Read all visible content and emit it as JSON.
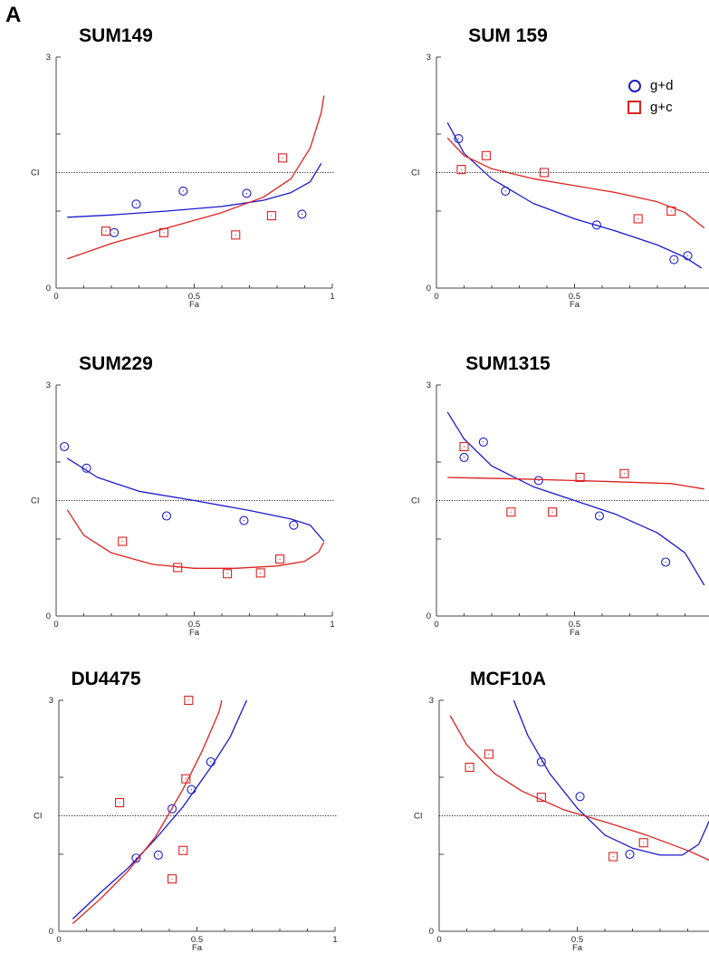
{
  "panel_letter": "A",
  "legend": [
    {
      "label": "g+d",
      "marker": "circle",
      "color": "#1a1acc"
    },
    {
      "label": "g+c",
      "marker": "square",
      "color": "#dd2222"
    }
  ],
  "chart_data": [
    {
      "type": "scatter",
      "title": "SUM149",
      "xlabel": "Fa",
      "ylabel": "CI",
      "xlim": [
        0,
        1
      ],
      "ylim": [
        0,
        3
      ],
      "xticks": [
        "0",
        "0.5",
        "1"
      ],
      "yticks": [
        "0",
        "3"
      ],
      "reference_line_y": 1.5,
      "series": [
        {
          "name": "g+d",
          "marker": "circle",
          "color": "#1a1acc",
          "points": [
            [
              0.21,
              0.72
            ],
            [
              0.29,
              1.09
            ],
            [
              0.46,
              1.26
            ],
            [
              0.69,
              1.23
            ],
            [
              0.89,
              0.96
            ]
          ],
          "fit": [
            [
              0.04,
              0.92
            ],
            [
              0.2,
              0.95
            ],
            [
              0.4,
              1.0
            ],
            [
              0.6,
              1.06
            ],
            [
              0.75,
              1.14
            ],
            [
              0.85,
              1.24
            ],
            [
              0.92,
              1.38
            ],
            [
              0.96,
              1.62
            ]
          ]
        },
        {
          "name": "g+c",
          "marker": "square",
          "color": "#dd2222",
          "points": [
            [
              0.18,
              0.74
            ],
            [
              0.39,
              0.72
            ],
            [
              0.65,
              0.69
            ],
            [
              0.78,
              0.94
            ],
            [
              0.82,
              1.69
            ]
          ],
          "fit": [
            [
              0.04,
              0.38
            ],
            [
              0.2,
              0.58
            ],
            [
              0.4,
              0.78
            ],
            [
              0.6,
              0.98
            ],
            [
              0.75,
              1.18
            ],
            [
              0.85,
              1.42
            ],
            [
              0.92,
              1.82
            ],
            [
              0.96,
              2.28
            ],
            [
              0.97,
              2.5
            ]
          ]
        }
      ]
    },
    {
      "type": "scatter",
      "title": "SUM 159",
      "xlabel": "Fa",
      "ylabel": "CI",
      "xlim": [
        0,
        1
      ],
      "ylim": [
        0,
        3
      ],
      "xticks": [
        "0",
        "0.5",
        "1"
      ],
      "yticks": [
        "0",
        "3"
      ],
      "reference_line_y": 1.5,
      "series": [
        {
          "name": "g+d",
          "marker": "circle",
          "color": "#1a1acc",
          "points": [
            [
              0.08,
              1.94
            ],
            [
              0.25,
              1.26
            ],
            [
              0.58,
              0.82
            ],
            [
              0.86,
              0.37
            ],
            [
              0.91,
              0.42
            ]
          ],
          "fit": [
            [
              0.04,
              2.15
            ],
            [
              0.1,
              1.75
            ],
            [
              0.2,
              1.42
            ],
            [
              0.35,
              1.1
            ],
            [
              0.5,
              0.9
            ],
            [
              0.65,
              0.74
            ],
            [
              0.8,
              0.56
            ],
            [
              0.9,
              0.4
            ],
            [
              0.96,
              0.26
            ]
          ]
        },
        {
          "name": "g+c",
          "marker": "square",
          "color": "#dd2222",
          "points": [
            [
              0.09,
              1.54
            ],
            [
              0.18,
              1.72
            ],
            [
              0.39,
              1.5
            ],
            [
              0.73,
              0.9
            ],
            [
              0.85,
              1.0
            ]
          ],
          "fit": [
            [
              0.04,
              1.95
            ],
            [
              0.1,
              1.72
            ],
            [
              0.2,
              1.55
            ],
            [
              0.35,
              1.42
            ],
            [
              0.5,
              1.33
            ],
            [
              0.65,
              1.24
            ],
            [
              0.8,
              1.12
            ],
            [
              0.9,
              0.98
            ],
            [
              0.97,
              0.78
            ]
          ]
        }
      ]
    },
    {
      "type": "scatter",
      "title": "SUM229",
      "xlabel": "Fa",
      "ylabel": "CI",
      "xlim": [
        0,
        1
      ],
      "ylim": [
        0,
        3
      ],
      "xticks": [
        "0",
        "0.5",
        "1"
      ],
      "yticks": [
        "0",
        "3"
      ],
      "reference_line_y": 1.5,
      "series": [
        {
          "name": "g+d",
          "marker": "circle",
          "color": "#1a1acc",
          "points": [
            [
              0.03,
              2.2
            ],
            [
              0.11,
              1.92
            ],
            [
              0.4,
              1.3
            ],
            [
              0.68,
              1.24
            ],
            [
              0.86,
              1.18
            ]
          ],
          "fit": [
            [
              0.04,
              2.05
            ],
            [
              0.15,
              1.8
            ],
            [
              0.3,
              1.62
            ],
            [
              0.5,
              1.5
            ],
            [
              0.7,
              1.37
            ],
            [
              0.85,
              1.26
            ],
            [
              0.92,
              1.18
            ],
            [
              0.97,
              0.97
            ]
          ]
        },
        {
          "name": "g+c",
          "marker": "square",
          "color": "#dd2222",
          "points": [
            [
              0.24,
              0.97
            ],
            [
              0.44,
              0.63
            ],
            [
              0.62,
              0.55
            ],
            [
              0.74,
              0.56
            ],
            [
              0.81,
              0.74
            ]
          ],
          "fit": [
            [
              0.04,
              1.38
            ],
            [
              0.1,
              1.05
            ],
            [
              0.2,
              0.82
            ],
            [
              0.35,
              0.67
            ],
            [
              0.5,
              0.62
            ],
            [
              0.65,
              0.62
            ],
            [
              0.8,
              0.65
            ],
            [
              0.9,
              0.71
            ],
            [
              0.95,
              0.83
            ],
            [
              0.97,
              0.96
            ]
          ]
        }
      ]
    },
    {
      "type": "scatter",
      "title": "SUM1315",
      "xlabel": "Fa",
      "ylabel": "CI",
      "xlim": [
        0,
        1
      ],
      "ylim": [
        0,
        3
      ],
      "xticks": [
        "0",
        "0.5",
        "1"
      ],
      "yticks": [
        "0",
        "3"
      ],
      "reference_line_y": 1.5,
      "series": [
        {
          "name": "g+d",
          "marker": "circle",
          "color": "#1a1acc",
          "points": [
            [
              0.1,
              2.06
            ],
            [
              0.17,
              2.26
            ],
            [
              0.37,
              1.76
            ],
            [
              0.59,
              1.3
            ],
            [
              0.83,
              0.7
            ]
          ],
          "fit": [
            [
              0.04,
              2.65
            ],
            [
              0.1,
              2.3
            ],
            [
              0.2,
              1.95
            ],
            [
              0.35,
              1.68
            ],
            [
              0.5,
              1.5
            ],
            [
              0.65,
              1.32
            ],
            [
              0.8,
              1.08
            ],
            [
              0.9,
              0.82
            ],
            [
              0.97,
              0.4
            ]
          ]
        },
        {
          "name": "g+c",
          "marker": "square",
          "color": "#dd2222",
          "points": [
            [
              0.1,
              2.2
            ],
            [
              0.27,
              1.35
            ],
            [
              0.42,
              1.35
            ],
            [
              0.52,
              1.8
            ],
            [
              0.68,
              1.85
            ]
          ],
          "fit": [
            [
              0.04,
              1.8
            ],
            [
              0.3,
              1.78
            ],
            [
              0.6,
              1.75
            ],
            [
              0.85,
              1.72
            ],
            [
              0.97,
              1.65
            ]
          ]
        }
      ]
    },
    {
      "type": "scatter",
      "title": "DU4475",
      "xlabel": "Fa",
      "ylabel": "CI",
      "xlim": [
        0,
        1
      ],
      "ylim": [
        0,
        3
      ],
      "xticks": [
        "0",
        "0.5",
        "1"
      ],
      "yticks": [
        "0",
        "3"
      ],
      "reference_line_y": 1.5,
      "series": [
        {
          "name": "g+d",
          "marker": "circle",
          "color": "#1a1acc",
          "points": [
            [
              0.28,
              0.95
            ],
            [
              0.36,
              0.99
            ],
            [
              0.41,
              1.59
            ],
            [
              0.48,
              1.84
            ],
            [
              0.55,
              2.2
            ]
          ],
          "fit": [
            [
              0.05,
              0.16
            ],
            [
              0.15,
              0.5
            ],
            [
              0.25,
              0.82
            ],
            [
              0.35,
              1.2
            ],
            [
              0.45,
              1.62
            ],
            [
              0.55,
              2.13
            ],
            [
              0.62,
              2.52
            ],
            [
              0.68,
              3.0
            ]
          ]
        },
        {
          "name": "g+c",
          "marker": "square",
          "color": "#dd2222",
          "points": [
            [
              0.22,
              1.67
            ],
            [
              0.41,
              0.68
            ],
            [
              0.45,
              1.05
            ],
            [
              0.46,
              1.98
            ],
            [
              0.47,
              3.0
            ]
          ],
          "fit": [
            [
              0.05,
              0.1
            ],
            [
              0.15,
              0.42
            ],
            [
              0.25,
              0.78
            ],
            [
              0.35,
              1.23
            ],
            [
              0.45,
              1.85
            ],
            [
              0.52,
              2.35
            ],
            [
              0.58,
              2.85
            ],
            [
              0.59,
              3.0
            ]
          ]
        }
      ]
    },
    {
      "type": "scatter",
      "title": "MCF10A",
      "xlabel": "Fa",
      "ylabel": "CI",
      "xlim": [
        0,
        1
      ],
      "ylim": [
        0,
        3
      ],
      "xticks": [
        "0",
        "0.5",
        "1"
      ],
      "yticks": [
        "0",
        "3"
      ],
      "reference_line_y": 1.5,
      "series": [
        {
          "name": "g+d",
          "marker": "circle",
          "color": "#1a1acc",
          "points": [
            [
              0.37,
              2.2
            ],
            [
              0.51,
              1.75
            ],
            [
              0.69,
              1.0
            ]
          ],
          "fit": [
            [
              0.27,
              3.0
            ],
            [
              0.32,
              2.55
            ],
            [
              0.4,
              2.05
            ],
            [
              0.5,
              1.6
            ],
            [
              0.6,
              1.25
            ],
            [
              0.7,
              1.08
            ],
            [
              0.8,
              0.99
            ],
            [
              0.88,
              0.99
            ],
            [
              0.94,
              1.13
            ],
            [
              0.98,
              1.45
            ]
          ]
        },
        {
          "name": "g+c",
          "marker": "square",
          "color": "#dd2222",
          "points": [
            [
              0.11,
              2.13
            ],
            [
              0.18,
              2.3
            ],
            [
              0.37,
              1.74
            ],
            [
              0.63,
              0.97
            ],
            [
              0.74,
              1.15
            ]
          ],
          "fit": [
            [
              0.04,
              2.8
            ],
            [
              0.1,
              2.42
            ],
            [
              0.2,
              2.05
            ],
            [
              0.3,
              1.82
            ],
            [
              0.45,
              1.58
            ],
            [
              0.6,
              1.42
            ],
            [
              0.75,
              1.25
            ],
            [
              0.9,
              1.05
            ],
            [
              0.98,
              0.92
            ]
          ]
        }
      ]
    }
  ]
}
